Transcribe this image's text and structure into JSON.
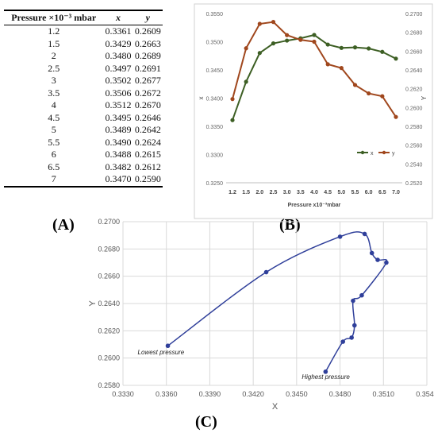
{
  "table": {
    "headers": [
      "Pressure ×10⁻³ mbar",
      "x",
      "y"
    ],
    "rows": [
      [
        "1.2",
        "0.3361",
        "0.2609"
      ],
      [
        "1.5",
        "0.3429",
        "0.2663"
      ],
      [
        "2",
        "0.3480",
        "0.2689"
      ],
      [
        "2.5",
        "0.3497",
        "0.2691"
      ],
      [
        "3",
        "0.3502",
        "0.2677"
      ],
      [
        "3.5",
        "0.3506",
        "0.2672"
      ],
      [
        "4",
        "0.3512",
        "0.2670"
      ],
      [
        "4.5",
        "0.3495",
        "0.2646"
      ],
      [
        "5",
        "0.3489",
        "0.2642"
      ],
      [
        "5.5",
        "0.3490",
        "0.2624"
      ],
      [
        "6",
        "0.3488",
        "0.2615"
      ],
      [
        "6.5",
        "0.3482",
        "0.2612"
      ],
      [
        "7",
        "0.3470",
        "0.2590"
      ]
    ]
  },
  "labels": {
    "a": "(A)",
    "b": "(B)",
    "c": "(C)"
  },
  "chart_data": [
    {
      "panel": "B",
      "type": "line",
      "categories": [
        "1.2",
        "1.5",
        "2.0",
        "2.5",
        "3.0",
        "3.5",
        "4.0",
        "4.5",
        "5.0",
        "5.5",
        "6.0",
        "6.5",
        "7.0"
      ],
      "series": [
        {
          "name": "x",
          "axis": "left",
          "color": "#3d5f24",
          "values": [
            0.3361,
            0.3429,
            0.348,
            0.3497,
            0.3502,
            0.3506,
            0.3512,
            0.3495,
            0.3489,
            0.349,
            0.3488,
            0.3482,
            0.347
          ]
        },
        {
          "name": "y",
          "axis": "right",
          "color": "#a0471d",
          "values": [
            0.2609,
            0.2663,
            0.2689,
            0.2691,
            0.2677,
            0.2672,
            0.267,
            0.2646,
            0.2642,
            0.2624,
            0.2615,
            0.2612,
            0.259
          ]
        }
      ],
      "xlabel": "Pressure    x10⁻³mbar",
      "ylabel_left": "x",
      "ylabel_right": "Y",
      "ylim_left": [
        0.325,
        0.355
      ],
      "ylim_right": [
        0.252,
        0.27
      ],
      "yticks_left": [
        "0.3250",
        "0.3300",
        "0.3350",
        "0.3400",
        "0.3450",
        "0.3500",
        "0.3550"
      ],
      "yticks_right": [
        "0.2520",
        "0.2540",
        "0.2560",
        "0.2580",
        "0.2600",
        "0.2620",
        "0.2640",
        "0.2660",
        "0.2680",
        "0.2700"
      ],
      "legend_position": "right",
      "grid": false
    },
    {
      "panel": "C",
      "type": "scatter",
      "x": [
        0.3361,
        0.3429,
        0.348,
        0.3497,
        0.3502,
        0.3506,
        0.3512,
        0.3495,
        0.3489,
        0.349,
        0.3488,
        0.3482,
        0.347
      ],
      "y": [
        0.2609,
        0.2663,
        0.2689,
        0.2691,
        0.2677,
        0.2672,
        0.267,
        0.2646,
        0.2642,
        0.2624,
        0.2615,
        0.2612,
        0.259
      ],
      "color": "#2f3f9a",
      "xlabel": "X",
      "ylabel": "Y",
      "xlim": [
        0.333,
        0.354
      ],
      "ylim": [
        0.258,
        0.27
      ],
      "xticks": [
        "0.3330",
        "0.3360",
        "0.3390",
        "0.3420",
        "0.3450",
        "0.3480",
        "0.3510",
        "0.3540"
      ],
      "yticks": [
        "0.2580",
        "0.2600",
        "0.2620",
        "0.2640",
        "0.2660",
        "0.2680",
        "0.2700"
      ],
      "annotations": [
        "Lowest pressure",
        "Highest pressure"
      ],
      "grid": true
    }
  ]
}
